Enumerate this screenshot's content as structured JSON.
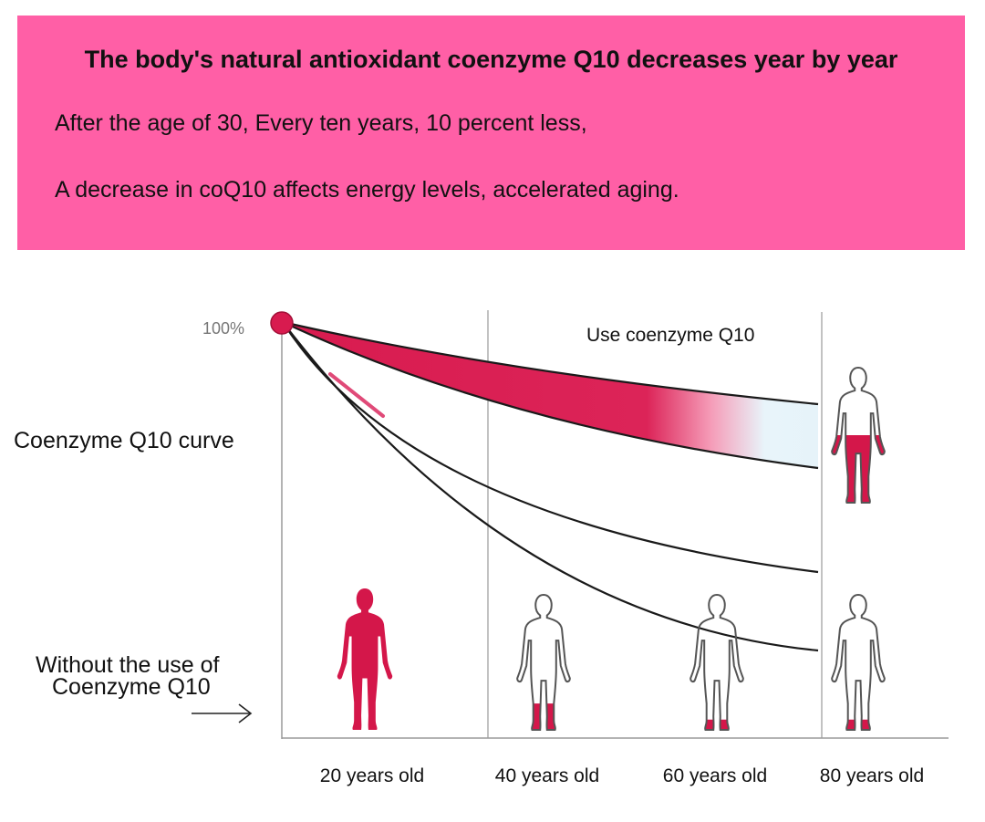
{
  "banner": {
    "headline": "The body's natural antioxidant coenzyme Q10 decreases year by year",
    "lines": [
      "After the age of 30, Every ten years, 10 percent less,",
      "A decrease in coQ10 affects energy levels,  accelerated aging."
    ]
  },
  "colors": {
    "banner": "#ff5fa6",
    "curve_fill": "#d81b4f",
    "body_fill": "#d4174a"
  },
  "chart_data": {
    "type": "line",
    "start_label": "100%",
    "y_label": "Coenzyme Q10 curve",
    "with_label": "Use coenzyme Q10",
    "without_label_lines": [
      "Without the use of",
      "Coenzyme Q10"
    ],
    "categories": [
      "20 years old",
      "40 years old",
      "60 years old",
      "80 years old"
    ],
    "figures": [
      {
        "age": "20 years old",
        "level": "full"
      },
      {
        "age": "40 years old",
        "level": "legs"
      },
      {
        "age": "60 years old",
        "level": "feet"
      },
      {
        "age": "80 years old",
        "level": "feet"
      },
      {
        "age": "80 years old",
        "level": "lower-body",
        "group": "Use coenzyme Q10"
      }
    ]
  }
}
